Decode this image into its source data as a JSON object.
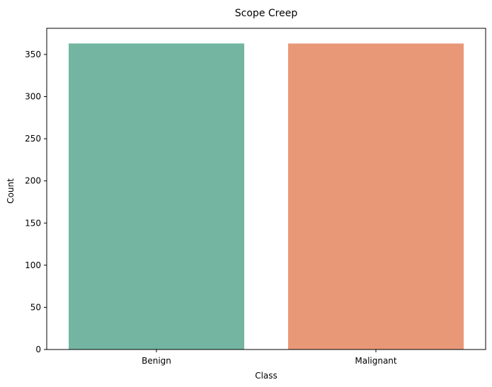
{
  "chart_data": {
    "type": "bar",
    "title": "Scope Creep",
    "xlabel": "Class",
    "ylabel": "Count",
    "categories": [
      "Benign",
      "Malignant"
    ],
    "values": [
      363,
      363
    ],
    "colors": [
      "#73b5a1",
      "#e99877"
    ],
    "ylim": [
      0,
      381
    ],
    "yticks": [
      0,
      50,
      100,
      150,
      200,
      250,
      300,
      350
    ],
    "grid": false,
    "legend": "none"
  }
}
